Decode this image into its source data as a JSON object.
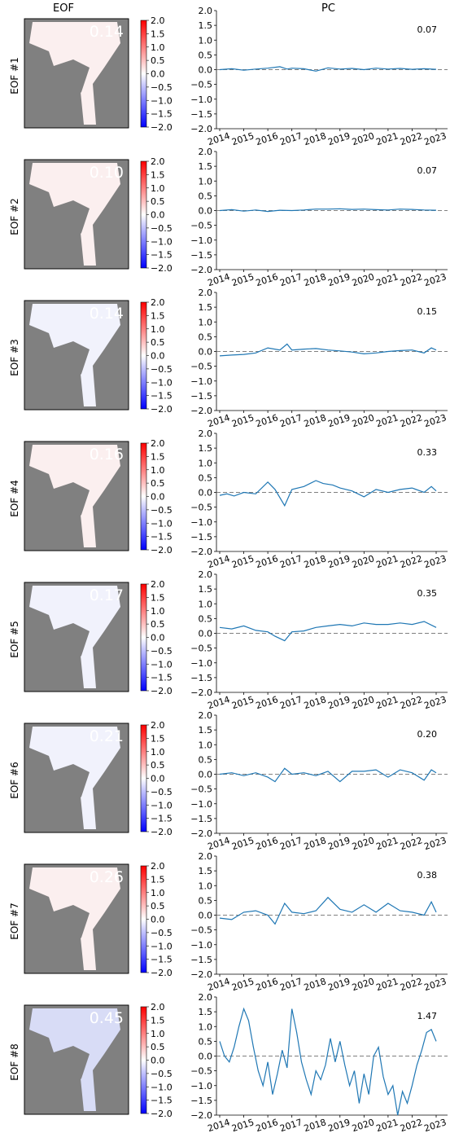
{
  "headers": {
    "eof": "EOF",
    "pc": "PC"
  },
  "colormap": {
    "low": "#0000ff",
    "mid": "#ffffff",
    "high": "#ff0000",
    "land": "#808080"
  },
  "chart_data": {
    "type": "line",
    "colorbar": {
      "ticks": [
        "2.0",
        "1.5",
        "1.0",
        "0.5",
        "0.0",
        "−0.5",
        "−1.0",
        "−1.5",
        "−2.0"
      ],
      "range": [
        -2,
        2
      ]
    },
    "xlabels": [
      "2014",
      "2015",
      "2016",
      "2017",
      "2018",
      "2019",
      "2020",
      "2021",
      "2022",
      "2023"
    ],
    "yticks": [
      "2.0",
      "1.5",
      "1.0",
      "0.5",
      "0.0",
      "−0.5",
      "−1.0",
      "−1.5",
      "−2.0"
    ],
    "xlim": [
      2014,
      2023
    ],
    "ylim": [
      -2,
      2
    ],
    "series_color": "#1f77b4",
    "zero_line_color": "#808080",
    "panels": [
      {
        "label": "EOF #1",
        "map_value": "0.14",
        "pc_value": "0.07",
        "x": [
          2014,
          2014.5,
          2015,
          2015.5,
          2016,
          2016.5,
          2016.8,
          2017,
          2017.5,
          2018,
          2018.5,
          2019,
          2019.5,
          2020,
          2020.5,
          2021,
          2021.5,
          2022,
          2022.5,
          2023
        ],
        "y": [
          0.0,
          0.03,
          -0.02,
          0.02,
          0.05,
          0.1,
          0.02,
          0.05,
          0.03,
          -0.05,
          0.06,
          0.02,
          0.04,
          0.0,
          0.05,
          0.02,
          0.04,
          0.01,
          0.03,
          0.01
        ]
      },
      {
        "label": "EOF #2",
        "map_value": "0.10",
        "pc_value": "0.07",
        "x": [
          2014,
          2014.5,
          2015,
          2015.5,
          2016,
          2016.5,
          2017,
          2017.5,
          2018,
          2018.5,
          2019,
          2019.5,
          2020,
          2020.5,
          2021,
          2021.5,
          2022,
          2022.5,
          2023
        ],
        "y": [
          0.0,
          0.03,
          -0.02,
          0.02,
          -0.03,
          0.01,
          0.0,
          0.02,
          0.05,
          0.05,
          0.06,
          0.04,
          0.05,
          0.03,
          0.02,
          0.05,
          0.04,
          0.02,
          0.01
        ]
      },
      {
        "label": "EOF #3",
        "map_value": "0.14",
        "pc_value": "0.15",
        "x": [
          2014,
          2014.5,
          2015,
          2015.5,
          2016,
          2016.5,
          2016.8,
          2017,
          2017.5,
          2018,
          2018.5,
          2019,
          2019.5,
          2020,
          2020.5,
          2021,
          2021.5,
          2022,
          2022.5,
          2022.8,
          2023
        ],
        "y": [
          -0.15,
          -0.12,
          -0.1,
          -0.05,
          0.12,
          0.05,
          0.25,
          0.05,
          0.08,
          0.1,
          0.05,
          0.02,
          -0.02,
          -0.08,
          -0.05,
          0.0,
          0.03,
          0.05,
          -0.05,
          0.12,
          0.05
        ]
      },
      {
        "label": "EOF #4",
        "map_value": "0.16",
        "pc_value": "0.33",
        "x": [
          2014,
          2014.3,
          2014.6,
          2015,
          2015.5,
          2016,
          2016.3,
          2016.7,
          2017,
          2017.5,
          2018,
          2018.3,
          2018.7,
          2019,
          2019.5,
          2020,
          2020.5,
          2021,
          2021.5,
          2022,
          2022.5,
          2022.8,
          2023
        ],
        "y": [
          -0.1,
          -0.05,
          -0.12,
          0.0,
          -0.05,
          0.35,
          0.1,
          -0.45,
          0.1,
          0.2,
          0.4,
          0.3,
          0.25,
          0.15,
          0.05,
          -0.15,
          0.1,
          0.0,
          0.1,
          0.15,
          0.0,
          0.2,
          0.05
        ]
      },
      {
        "label": "EOF #5",
        "map_value": "0.17",
        "pc_value": "0.35",
        "x": [
          2014,
          2014.5,
          2015,
          2015.5,
          2016,
          2016.3,
          2016.7,
          2017,
          2017.5,
          2018,
          2018.5,
          2019,
          2019.5,
          2020,
          2020.5,
          2021,
          2021.5,
          2022,
          2022.5,
          2023
        ],
        "y": [
          0.2,
          0.15,
          0.25,
          0.1,
          0.05,
          -0.1,
          -0.25,
          0.05,
          0.08,
          0.2,
          0.25,
          0.3,
          0.25,
          0.35,
          0.3,
          0.3,
          0.35,
          0.3,
          0.4,
          0.2
        ]
      },
      {
        "label": "EOF #6",
        "map_value": "0.21",
        "pc_value": "0.20",
        "x": [
          2014,
          2014.5,
          2015,
          2015.5,
          2016,
          2016.3,
          2016.7,
          2017,
          2017.5,
          2018,
          2018.5,
          2019,
          2019.5,
          2020,
          2020.5,
          2021,
          2021.5,
          2022,
          2022.5,
          2022.8,
          2023
        ],
        "y": [
          0.0,
          0.05,
          -0.05,
          0.05,
          -0.1,
          -0.25,
          0.2,
          0.0,
          0.05,
          -0.05,
          0.1,
          -0.25,
          0.1,
          0.1,
          0.15,
          -0.1,
          0.15,
          0.05,
          -0.2,
          0.15,
          0.05
        ]
      },
      {
        "label": "EOF #7",
        "map_value": "0.26",
        "pc_value": "0.38",
        "x": [
          2014,
          2014.5,
          2015,
          2015.5,
          2016,
          2016.3,
          2016.7,
          2017,
          2017.5,
          2018,
          2018.5,
          2019,
          2019.5,
          2020,
          2020.5,
          2021,
          2021.5,
          2022,
          2022.5,
          2022.8,
          2023
        ],
        "y": [
          -0.1,
          -0.15,
          0.1,
          0.15,
          0.0,
          -0.3,
          0.4,
          0.1,
          0.05,
          0.15,
          0.6,
          0.2,
          0.1,
          0.35,
          0.1,
          0.4,
          0.15,
          0.1,
          0.0,
          0.45,
          0.1
        ]
      },
      {
        "label": "EOF #8",
        "map_value": "0.45",
        "pc_value": "1.47",
        "x": [
          2014,
          2014.2,
          2014.4,
          2014.6,
          2014.8,
          2015,
          2015.2,
          2015.4,
          2015.6,
          2015.8,
          2016,
          2016.2,
          2016.4,
          2016.6,
          2016.8,
          2017,
          2017.2,
          2017.4,
          2017.6,
          2017.8,
          2018,
          2018.2,
          2018.4,
          2018.6,
          2018.8,
          2019,
          2019.2,
          2019.4,
          2019.6,
          2019.8,
          2020,
          2020.2,
          2020.4,
          2020.6,
          2020.8,
          2021,
          2021.2,
          2021.4,
          2021.6,
          2021.8,
          2022,
          2022.2,
          2022.4,
          2022.6,
          2022.8,
          2023
        ],
        "y": [
          0.5,
          0.0,
          -0.2,
          0.3,
          1.0,
          1.6,
          1.2,
          0.3,
          -0.5,
          -1.0,
          -0.2,
          -1.3,
          -0.6,
          0.2,
          -0.4,
          1.6,
          0.8,
          -0.2,
          -0.8,
          -1.3,
          -0.5,
          -0.8,
          -0.3,
          0.6,
          -0.2,
          0.5,
          -0.3,
          -1.0,
          -0.5,
          -1.6,
          -0.6,
          -1.3,
          0.0,
          0.3,
          -0.7,
          -1.3,
          -1.0,
          -2.0,
          -1.2,
          -1.6,
          -1.0,
          -0.3,
          0.2,
          0.8,
          0.9,
          0.5
        ]
      }
    ]
  }
}
